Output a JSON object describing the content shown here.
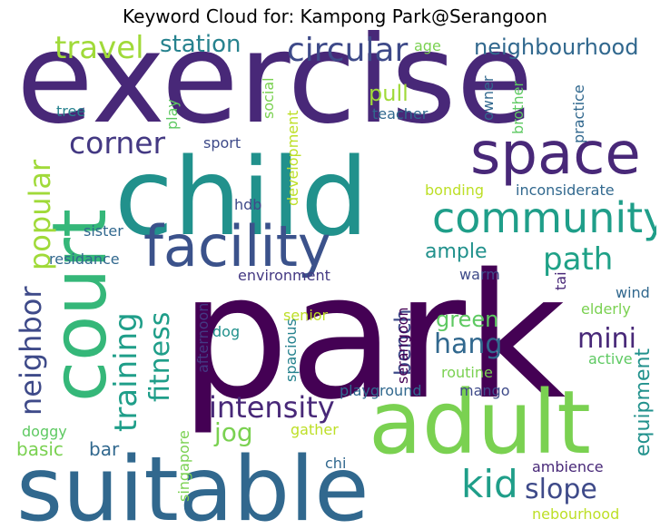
{
  "title": "Keyword Cloud for: Kampong Park@Serangoon",
  "words": [
    {
      "text": "exercise",
      "color": "#482878"
    },
    {
      "text": "park",
      "color": "#440154"
    },
    {
      "text": "child",
      "color": "#21918c"
    },
    {
      "text": "suitable",
      "color": "#31688e"
    },
    {
      "text": "adult",
      "color": "#7ad151"
    },
    {
      "text": "court",
      "color": "#35b779"
    },
    {
      "text": "facility",
      "color": "#3b528b"
    },
    {
      "text": "space",
      "color": "#482878"
    },
    {
      "text": "community",
      "color": "#1f9e89"
    },
    {
      "text": "circular",
      "color": "#3e4a89"
    },
    {
      "text": "travel",
      "color": "#a0da39"
    },
    {
      "text": "station",
      "color": "#26828e"
    },
    {
      "text": "neighbourhood",
      "color": "#31688e"
    },
    {
      "text": "corner",
      "color": "#443983"
    },
    {
      "text": "popular",
      "color": "#a0da39"
    },
    {
      "text": "neighbor",
      "color": "#3e4a89"
    },
    {
      "text": "training",
      "color": "#1f9e89"
    },
    {
      "text": "fitness",
      "color": "#1f9e89"
    },
    {
      "text": "intensity",
      "color": "#482878"
    },
    {
      "text": "path",
      "color": "#1fa187"
    },
    {
      "text": "hang",
      "color": "#31688e"
    },
    {
      "text": "mini",
      "color": "#482878"
    },
    {
      "text": "jog",
      "color": "#7ad151"
    },
    {
      "text": "kid",
      "color": "#1f9e89"
    },
    {
      "text": "slope",
      "color": "#3e4a89"
    },
    {
      "text": "bench",
      "color": "#3e4a89"
    },
    {
      "text": "green",
      "color": "#5ec962"
    },
    {
      "text": "ample",
      "color": "#21918c"
    },
    {
      "text": "pull",
      "color": "#a0da39"
    },
    {
      "text": "equipment",
      "color": "#21918c"
    },
    {
      "text": "basic",
      "color": "#7ad151"
    },
    {
      "text": "bar",
      "color": "#31688e"
    },
    {
      "text": "sport",
      "color": "#3e4a89"
    },
    {
      "text": "teacher",
      "color": "#31688e"
    },
    {
      "text": "tree",
      "color": "#26828e"
    },
    {
      "text": "play",
      "color": "#5ec962"
    },
    {
      "text": "social",
      "color": "#7ad151"
    },
    {
      "text": "development",
      "color": "#bddf26"
    },
    {
      "text": "age",
      "color": "#7ad151"
    },
    {
      "text": "owner",
      "color": "#31688e"
    },
    {
      "text": "brother",
      "color": "#5ec962"
    },
    {
      "text": "practice",
      "color": "#31688e"
    },
    {
      "text": "bonding",
      "color": "#bddf26"
    },
    {
      "text": "inconsiderate",
      "color": "#31688e"
    },
    {
      "text": "hdb",
      "color": "#3e4a89"
    },
    {
      "text": "sister",
      "color": "#31688e"
    },
    {
      "text": "residance",
      "color": "#31688e"
    },
    {
      "text": "environment",
      "color": "#443983"
    },
    {
      "text": "warm",
      "color": "#3e4a89"
    },
    {
      "text": "tai",
      "color": "#482878"
    },
    {
      "text": "wind",
      "color": "#31688e"
    },
    {
      "text": "elderly",
      "color": "#7ad151"
    },
    {
      "text": "senior",
      "color": "#bddf26"
    },
    {
      "text": "dog",
      "color": "#21918c"
    },
    {
      "text": "afternoon",
      "color": "#443983"
    },
    {
      "text": "spacious",
      "color": "#26828e"
    },
    {
      "text": "serangoon",
      "color": "#440154"
    },
    {
      "text": "active",
      "color": "#5ec962"
    },
    {
      "text": "routine",
      "color": "#7ad151"
    },
    {
      "text": "playground",
      "color": "#31688e"
    },
    {
      "text": "mango",
      "color": "#3e4a89"
    },
    {
      "text": "doggy",
      "color": "#5ec962"
    },
    {
      "text": "gather",
      "color": "#bddf26"
    },
    {
      "text": "singapore",
      "color": "#7ad151"
    },
    {
      "text": "chi",
      "color": "#31688e"
    },
    {
      "text": "ambience",
      "color": "#482878"
    },
    {
      "text": "nebourhood",
      "color": "#bddf26"
    }
  ]
}
